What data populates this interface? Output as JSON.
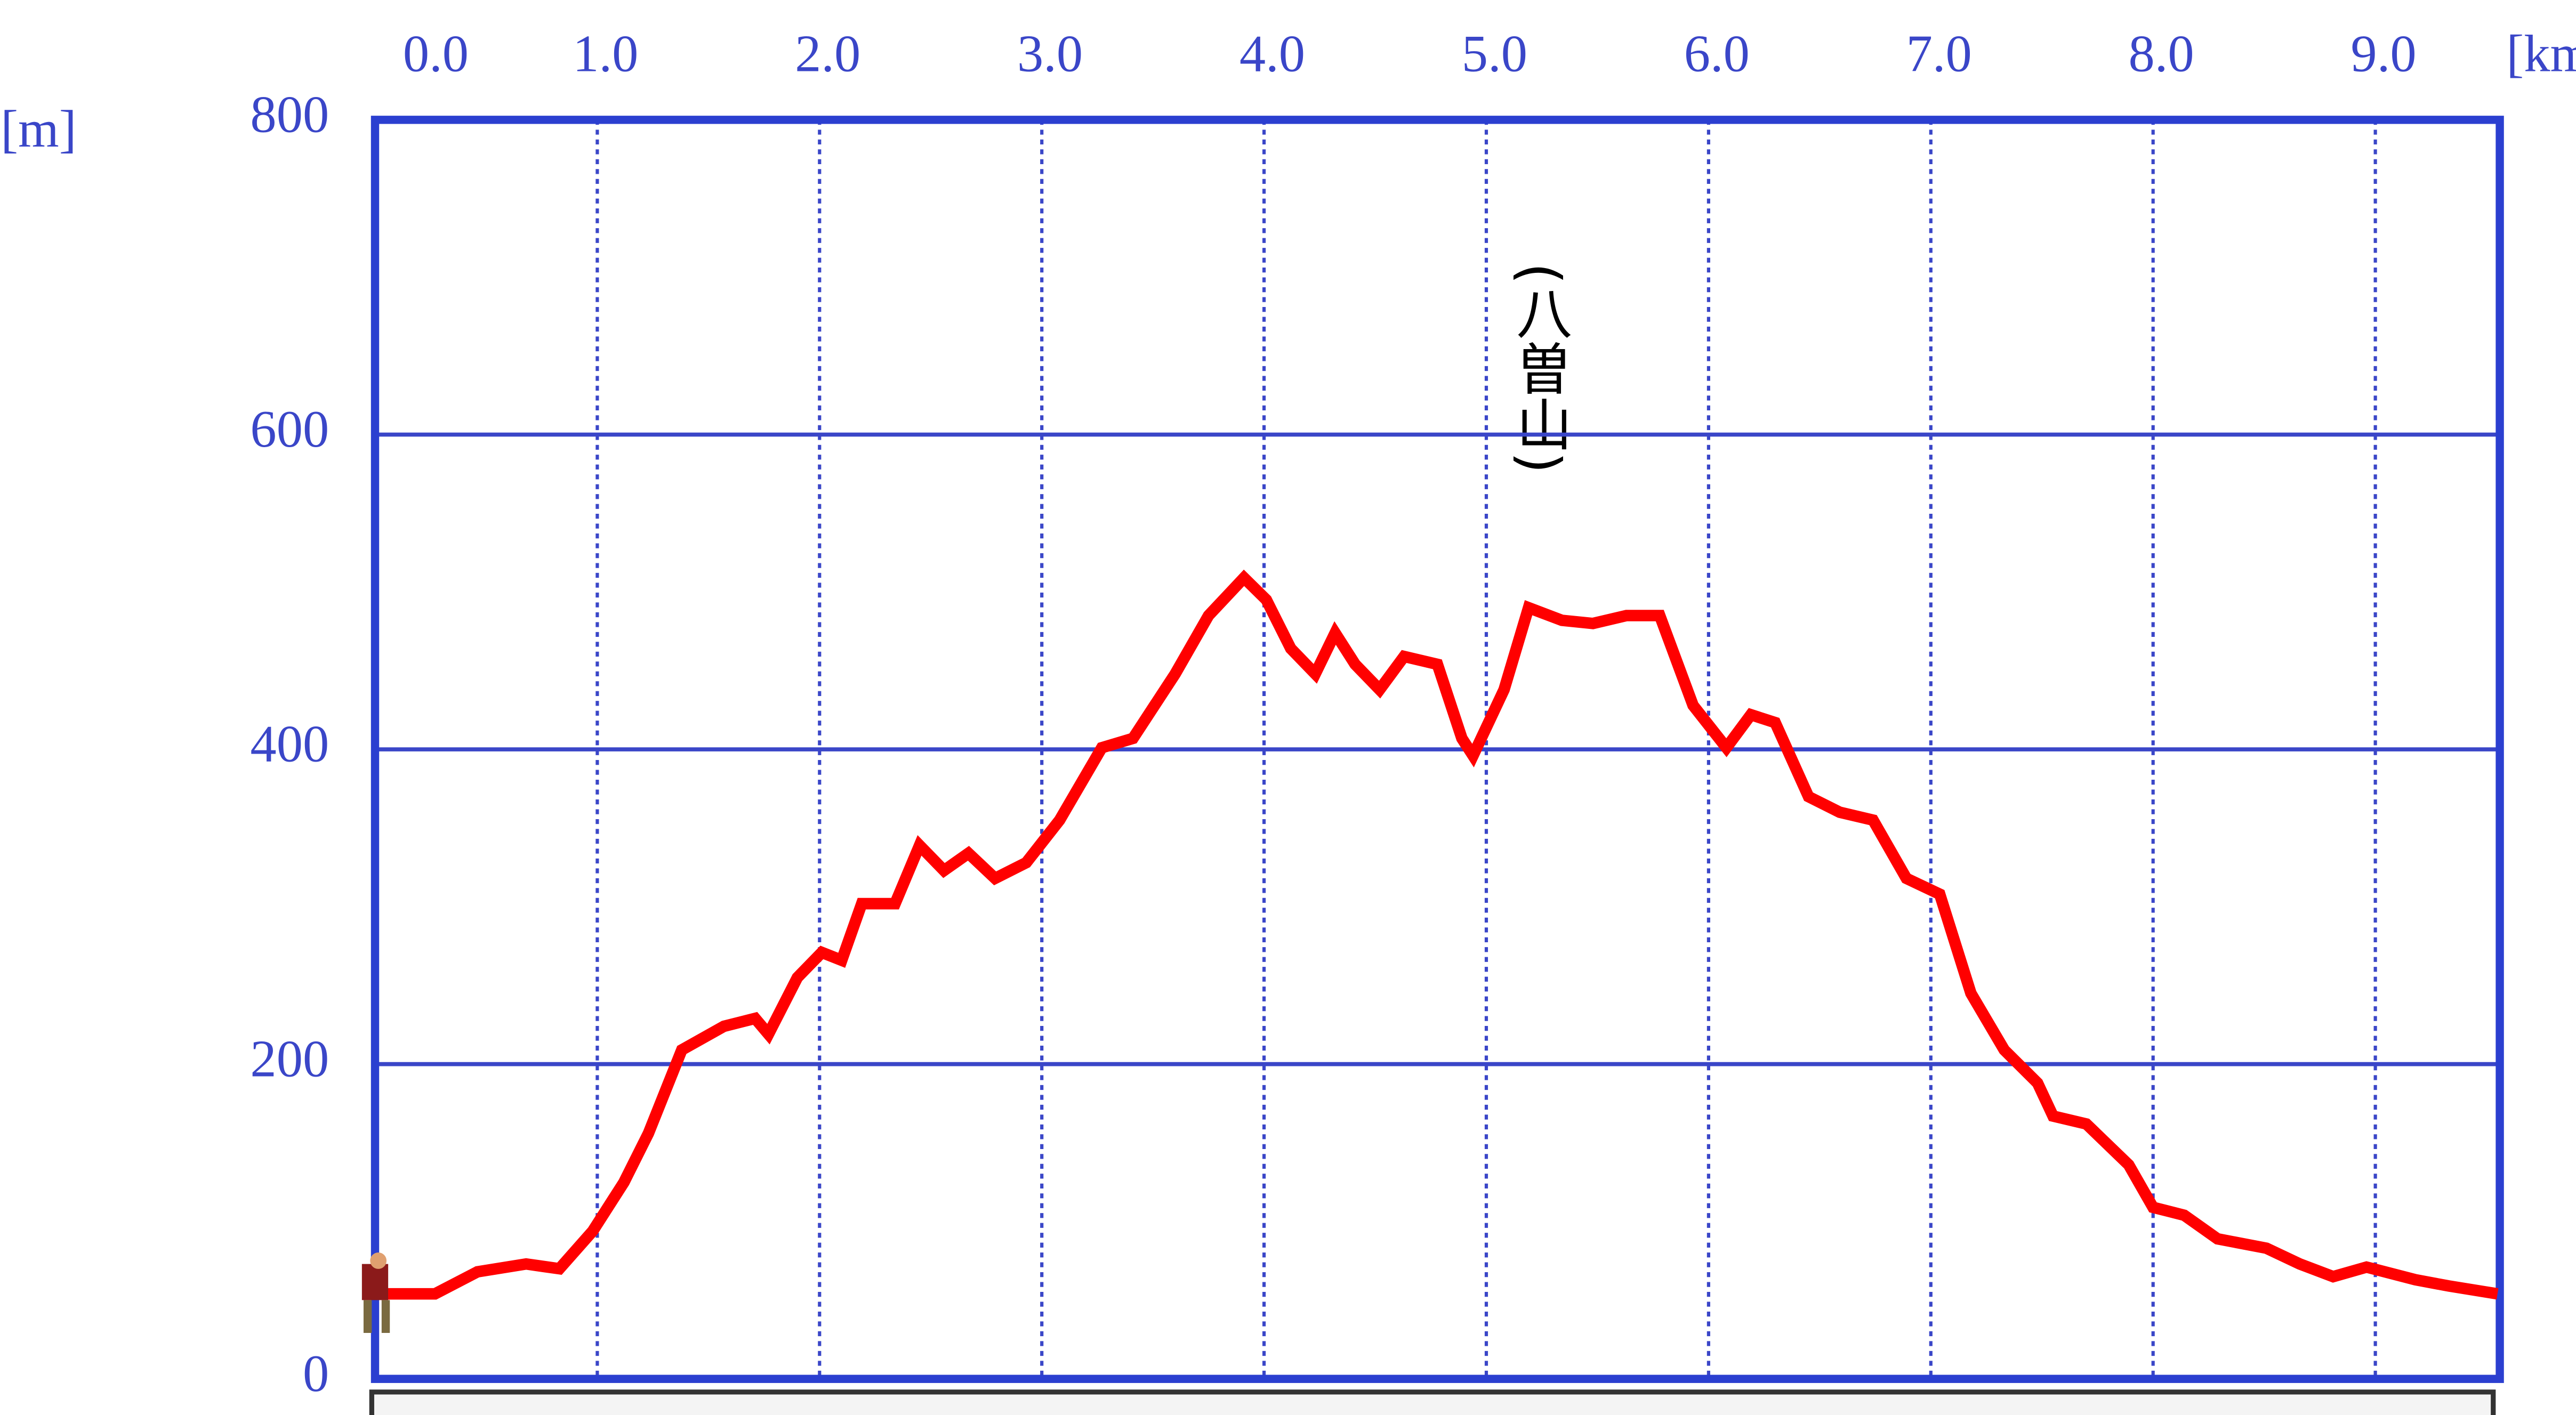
{
  "chart_data": {
    "type": "line",
    "xlabel": "[km]",
    "ylabel": "[m]",
    "annotation": "(八曽山)",
    "x": [
      0,
      0.27,
      0.46,
      0.68,
      0.83,
      0.98,
      1.12,
      1.23,
      1.38,
      1.57,
      1.71,
      1.77,
      1.9,
      2.01,
      2.1,
      2.19,
      2.34,
      2.45,
      2.56,
      2.67,
      2.79,
      2.93,
      3.08,
      3.27,
      3.41,
      3.6,
      3.75,
      3.91,
      4.01,
      4.12,
      4.23,
      4.32,
      4.41,
      4.52,
      4.63,
      4.78,
      4.89,
      4.94,
      5.08,
      5.19,
      5.34,
      5.48,
      5.63,
      5.78,
      5.93,
      6.08,
      6.19,
      6.3,
      6.45,
      6.59,
      6.74,
      6.89,
      7.04,
      7.18,
      7.33,
      7.48,
      7.55,
      7.7,
      7.89,
      8.0,
      8.14,
      8.29,
      8.51,
      8.66,
      8.81,
      8.96,
      9.18,
      9.33,
      9.55
    ],
    "values": [
      54,
      54,
      68,
      73,
      70,
      94,
      125,
      156,
      209,
      224,
      229,
      219,
      255,
      271,
      266,
      302,
      302,
      339,
      323,
      334,
      318,
      328,
      355,
      401,
      407,
      448,
      485,
      509,
      495,
      464,
      448,
      474,
      454,
      438,
      459,
      454,
      407,
      396,
      438,
      490,
      482,
      480,
      485,
      485,
      428,
      401,
      422,
      417,
      370,
      360,
      355,
      318,
      308,
      245,
      209,
      188,
      167,
      162,
      136,
      109,
      104,
      89,
      83,
      73,
      65,
      71,
      63,
      59,
      54
    ],
    "color": "#ff0000",
    "xlim": [
      0,
      9.56
    ],
    "ylim": [
      0,
      800
    ],
    "xticks": [
      {
        "value": 0,
        "label": "0.0"
      },
      {
        "value": 1,
        "label": "1.0"
      },
      {
        "value": 2,
        "label": "2.0"
      },
      {
        "value": 3,
        "label": "3.0"
      },
      {
        "value": 4,
        "label": "4.0"
      },
      {
        "value": 5,
        "label": "5.0"
      },
      {
        "value": 6,
        "label": "6.0"
      },
      {
        "value": 7,
        "label": "7.0"
      },
      {
        "value": 8,
        "label": "8.0"
      },
      {
        "value": 9,
        "label": "9.0"
      }
    ],
    "yticks": [
      0,
      200,
      400,
      600,
      800
    ],
    "grid": true
  }
}
